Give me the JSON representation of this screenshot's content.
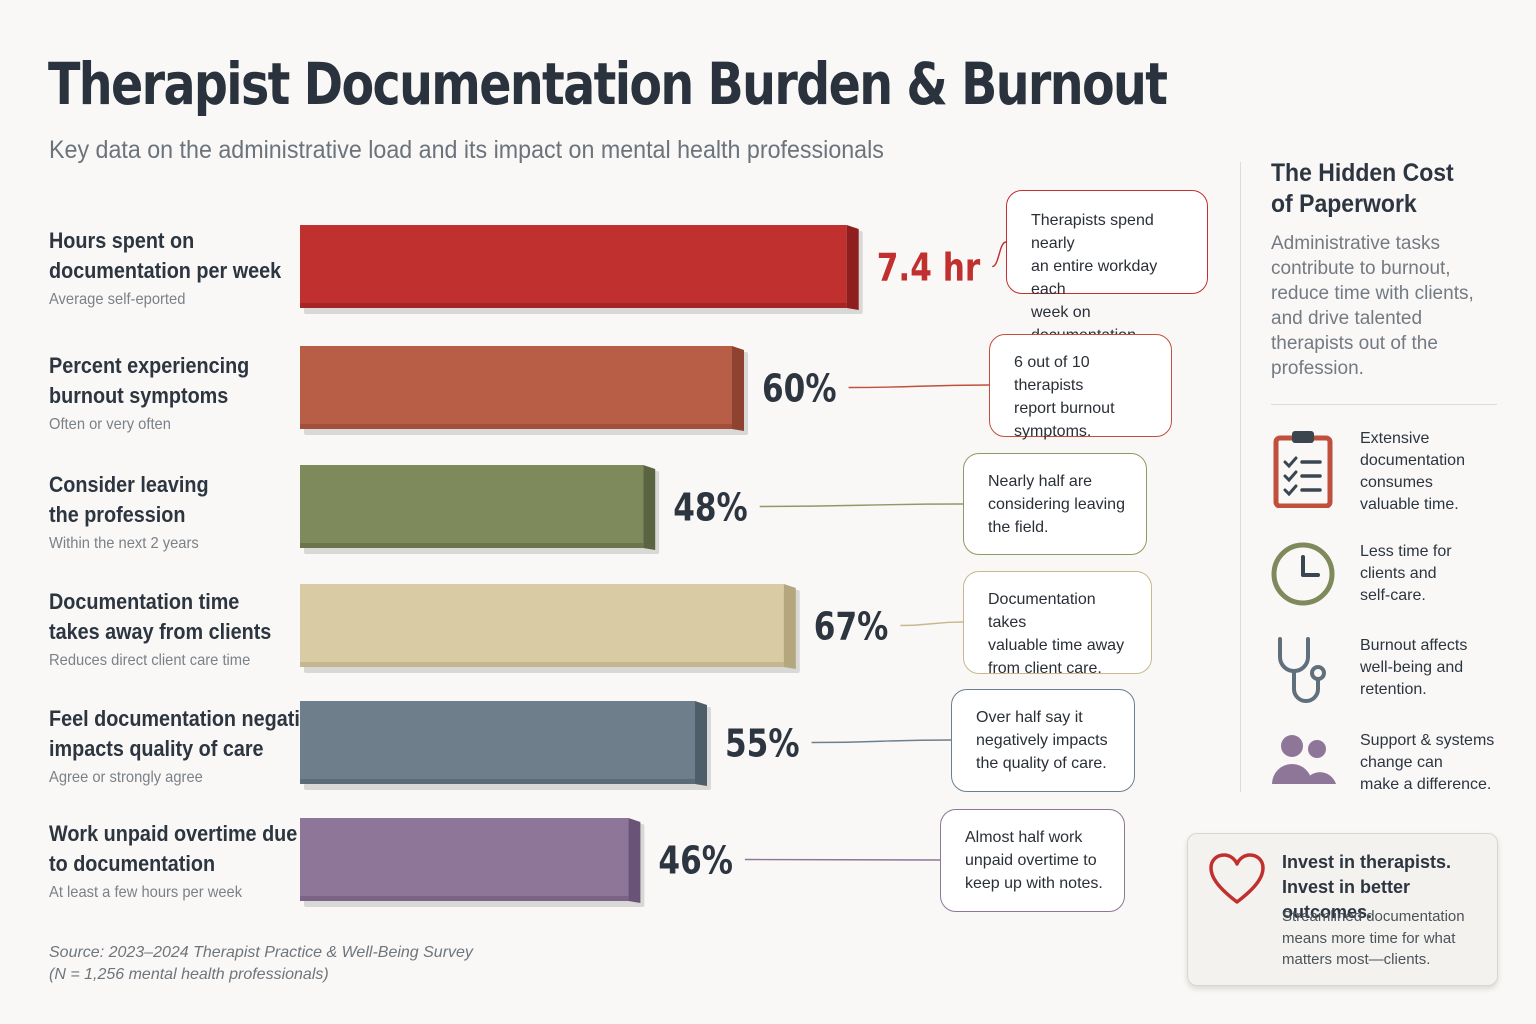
{
  "header": {
    "title": "Therapist Documentation Burden & Burnout",
    "subtitle": "Key data on the administrative load and its impact on mental health professionals"
  },
  "chart_data": {
    "type": "bar",
    "orientation": "horizontal",
    "categories": [
      "Hours spent on documentation per week",
      "Percent experiencing burnout symptoms",
      "Consider leaving the profession",
      "Documentation time takes away from clients",
      "Feel documentation negatively impacts quality of care",
      "Work unpaid overtime due to documentation"
    ],
    "values": [
      7.4,
      60,
      48,
      67,
      55,
      46
    ],
    "units": [
      "hr",
      "%",
      "%",
      "%",
      "%",
      "%"
    ],
    "value_labels": [
      "7.4 hr",
      "60%",
      "48%",
      "67%",
      "55%",
      "46%"
    ],
    "bar_colors": [
      "#c0302e",
      "#b85e46",
      "#7f8a5c",
      "#d9cba4",
      "#6e7f8b",
      "#8e7699"
    ],
    "shade_colors": [
      "#8e1f1e",
      "#8e4331",
      "#5b6440",
      "#b4a67d",
      "#4f5d68",
      "#695478"
    ],
    "label_colors": [
      "#c0302e",
      "#2c3540",
      "#2c3540",
      "#2c3540",
      "#2c3540",
      "#2c3540"
    ],
    "callout_colors": [
      "#c0302e",
      "#c0503b",
      "#8e9a66",
      "#c9b88d",
      "#6e7f8b",
      "#8e7699"
    ]
  },
  "rows": [
    {
      "label_lines": [
        "Hours spent on",
        "documentation per week"
      ],
      "note": "Average self-eported",
      "callout": [
        "Therapists spend nearly",
        "an entire workday each",
        "week on documentation."
      ]
    },
    {
      "label_lines": [
        "Percent experiencing",
        "burnout symptoms"
      ],
      "note": "Often or very often",
      "callout": [
        "6 out of 10 therapists",
        "report burnout",
        "symptoms."
      ]
    },
    {
      "label_lines": [
        "Consider leaving",
        "the profession"
      ],
      "note": "Within the next 2 years",
      "callout": [
        "Nearly half are",
        "considering leaving",
        "the field."
      ]
    },
    {
      "label_lines": [
        "Documentation time",
        "takes away from clients"
      ],
      "note": "Reduces direct client care time",
      "callout": [
        "Documentation takes",
        "valuable time away",
        "from client care."
      ]
    },
    {
      "label_lines": [
        "Feel documentation negatively",
        "impacts quality of care"
      ],
      "note": "Agree or strongly agree",
      "callout": [
        "Over half say it",
        "negatively impacts",
        "the quality of care."
      ]
    },
    {
      "label_lines": [
        "Work unpaid overtime due",
        "to documentation"
      ],
      "note": "At least a few hours per week",
      "callout": [
        "Almost half work",
        "unpaid overtime to",
        "keep up with notes."
      ]
    }
  ],
  "sidebar": {
    "title_lines": [
      "The Hidden Cost",
      "of Paperwork"
    ],
    "text": "Administrative tasks contribute to burnout, reduce time with clients, and drive talented therapists out of the profession.",
    "items": [
      {
        "icon": "clipboard-checklist-icon",
        "color": "#c0503b",
        "lines": [
          "Extensive",
          "documentation",
          "consumes",
          "valuable time."
        ]
      },
      {
        "icon": "clock-icon",
        "color": "#7f8a5c",
        "lines": [
          "Less time for",
          "clients and",
          "self-care."
        ]
      },
      {
        "icon": "stethoscope-icon",
        "color": "#5f6f7c",
        "lines": [
          "Burnout affects",
          "well-being and",
          "retention."
        ]
      },
      {
        "icon": "people-icon",
        "color": "#8e7699",
        "lines": [
          "Support & systems",
          "change can",
          "make a difference."
        ]
      }
    ]
  },
  "invest": {
    "icon": "heart-icon",
    "color": "#c0302e",
    "heading_lines": [
      "Invest in therapists.",
      "Invest in better outcomes."
    ],
    "body_lines": [
      "Streamlined documentation",
      "means more time for what",
      "matters most—clients."
    ]
  },
  "source": {
    "line1": "Source: 2023–2024 Therapist Practice & Well-Being Survey",
    "line2": "(N = 1,256 mental health professionals)"
  }
}
